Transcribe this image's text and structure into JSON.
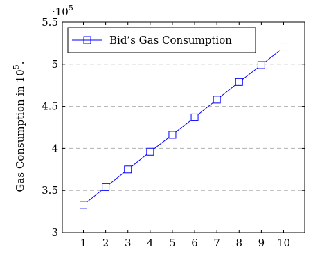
{
  "chart_data": {
    "type": "line",
    "title": "",
    "xlabel": "",
    "ylabel": "Gas Consumption in 10",
    "ylabel_superscript": "5",
    "ylabel_suffix": ".",
    "y_multiplier_base": "·10",
    "y_multiplier_exp": "5",
    "x": [
      1,
      2,
      3,
      4,
      5,
      6,
      7,
      8,
      9,
      10
    ],
    "xlim": [
      0.05,
      10.95
    ],
    "ylim": [
      3,
      5.5
    ],
    "x_ticks": [
      "1",
      "2",
      "3",
      "4",
      "5",
      "6",
      "7",
      "8",
      "9",
      "10"
    ],
    "y_ticks": [
      "3",
      "3.5",
      "4",
      "4.5",
      "5",
      "5.5"
    ],
    "grid": "horizontal dashed",
    "legend_position": "top-left",
    "series": [
      {
        "name": "Bid’s Gas Consumption",
        "color": "#0000ff",
        "marker": "square",
        "values": [
          3.33,
          3.54,
          3.75,
          3.96,
          4.16,
          4.37,
          4.58,
          4.79,
          4.99,
          5.2
        ]
      }
    ]
  }
}
